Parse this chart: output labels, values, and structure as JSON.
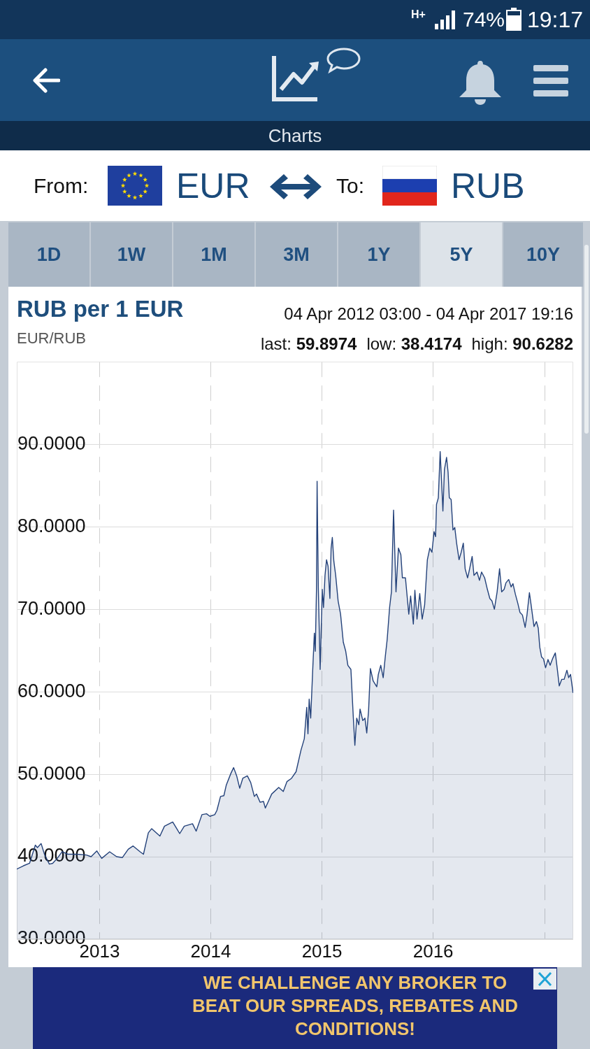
{
  "chart_data": {
    "type": "area",
    "title": "RUB per 1 EUR",
    "subtitle": "EUR/RUB",
    "annotations": [
      "Charts",
      "From:",
      "EUR",
      "To:",
      "RUB",
      "1D",
      "1W",
      "1M",
      "3M",
      "1Y",
      "5Y",
      "10Y",
      "04 Apr 2012 03:00 - 04 Apr 2017 19:16",
      "last: 59.8974",
      "low: 38.4174",
      "high: 90.6282",
      "WE CHALLENGE ANY BROKER TO BEAT OUR SPREADS, REBATES AND CONDITIONS!",
      "H+",
      "74%",
      "19:17"
    ],
    "x": [
      "2012-04-04T03:00",
      "2012-04-26",
      "2012-05-16",
      "2012-05-23",
      "2012-06-04",
      "2012-06-11",
      "2012-06-23",
      "2012-07-04",
      "2012-07-20",
      "2012-07-31",
      "2012-08-15",
      "2012-08-31",
      "2012-09-19",
      "2012-10-19",
      "2012-11-19",
      "2012-12-04",
      "2012-12-23",
      "2013-01-08",
      "2013-02-03",
      "2013-02-26",
      "2013-03-17",
      "2013-04-05",
      "2013-04-21",
      "2013-05-14",
      "2013-05-25",
      "2013-06-10",
      "2013-06-21",
      "2013-07-18",
      "2013-08-02",
      "2013-08-29",
      "2013-09-21",
      "2013-10-06",
      "2013-11-02",
      "2013-11-14",
      "2013-12-03",
      "2013-12-18",
      "2013-12-29",
      "2014-01-14",
      "2014-01-21",
      "2014-02-02",
      "2014-02-13",
      "2014-02-21",
      "2014-03-08",
      "2014-03-17",
      "2014-03-27",
      "2014-04-06",
      "2014-04-16",
      "2014-05-01",
      "2014-05-12",
      "2014-05-24",
      "2014-05-31",
      "2014-06-12",
      "2014-06-23",
      "2014-06-29",
      "2014-07-09",
      "2014-07-20",
      "2014-08-12",
      "2014-08-27",
      "2014-09-08",
      "2014-09-23",
      "2014-10-08",
      "2014-10-24",
      "2014-11-04",
      "2014-11-12",
      "2014-11-16",
      "2014-11-20",
      "2014-11-25",
      "2014-12-01",
      "2014-12-07",
      "2014-12-10",
      "2014-12-14",
      "2014-12-16",
      "2014-12-20",
      "2014-12-26",
      "2015-01-02",
      "2015-01-06",
      "2015-01-11",
      "2015-01-16",
      "2015-01-21",
      "2015-01-27",
      "2015-01-31",
      "2015-02-04",
      "2015-02-09",
      "2015-02-15",
      "2015-02-23",
      "2015-03-03",
      "2015-03-12",
      "2015-03-20",
      "2015-03-27",
      "2015-04-06",
      "2015-04-14",
      "2015-04-19",
      "2015-04-25",
      "2015-05-02",
      "2015-05-06",
      "2015-05-15",
      "2015-05-22",
      "2015-05-28",
      "2015-06-03",
      "2015-06-09",
      "2015-06-18",
      "2015-06-30",
      "2015-07-05",
      "2015-07-13",
      "2015-07-21",
      "2015-07-28",
      "2015-08-03",
      "2015-08-11",
      "2015-08-17",
      "2015-08-24",
      "2015-09-01",
      "2015-09-09",
      "2015-09-17",
      "2015-09-22",
      "2015-10-02",
      "2015-10-13",
      "2015-10-19",
      "2015-10-28",
      "2015-11-02",
      "2015-11-09",
      "2015-11-18",
      "2015-11-26",
      "2015-12-04",
      "2015-12-13",
      "2015-12-21",
      "2015-12-28",
      "2016-01-04",
      "2016-01-09",
      "2016-01-12",
      "2016-01-18",
      "2016-01-24",
      "2016-01-30",
      "2016-02-02",
      "2016-02-07",
      "2016-02-14",
      "2016-02-19",
      "2016-02-23",
      "2016-02-29",
      "2016-03-06",
      "2016-03-12",
      "2016-03-18",
      "2016-03-26",
      "2016-04-02",
      "2016-04-09",
      "2016-04-15",
      "2016-04-23",
      "2016-04-28",
      "2016-05-08",
      "2016-05-14",
      "2016-05-24",
      "2016-06-01",
      "2016-06-08",
      "2016-06-18",
      "2016-06-27",
      "2016-07-05",
      "2016-07-12",
      "2016-07-20",
      "2016-07-29",
      "2016-08-06",
      "2016-08-13",
      "2016-08-21",
      "2016-08-27",
      "2016-09-05",
      "2016-09-13",
      "2016-09-19",
      "2016-09-27",
      "2016-10-05",
      "2016-10-12",
      "2016-10-20",
      "2016-10-29",
      "2016-11-04",
      "2016-11-12",
      "2016-11-18",
      "2016-11-27",
      "2016-12-05",
      "2016-12-11",
      "2016-12-16",
      "2016-12-22",
      "2016-12-28",
      "2017-01-04",
      "2017-01-12",
      "2017-01-19",
      "2017-01-27",
      "2017-02-05",
      "2017-02-12",
      "2017-02-18",
      "2017-02-26",
      "2017-03-06",
      "2017-03-15",
      "2017-03-21",
      "2017-03-27",
      "2017-04-04"
    ],
    "values": [
      38.5,
      38.9,
      39.2,
      40.0,
      41.4,
      41.1,
      41.6,
      40.3,
      39.1,
      39.2,
      39.8,
      40.6,
      40.3,
      40.3,
      40.2,
      40.0,
      40.7,
      39.8,
      40.6,
      40.0,
      39.9,
      40.9,
      41.3,
      40.6,
      40.3,
      42.9,
      43.4,
      42.5,
      43.7,
      44.2,
      42.8,
      43.7,
      44.0,
      43.1,
      45.1,
      45.2,
      44.9,
      45.1,
      45.6,
      47.3,
      47.4,
      48.7,
      50.1,
      50.8,
      49.8,
      48.3,
      49.5,
      49.8,
      49.0,
      47.3,
      47.6,
      46.6,
      46.7,
      45.9,
      46.7,
      47.6,
      48.4,
      47.9,
      49.1,
      49.5,
      50.3,
      52.9,
      54.3,
      58.1,
      54.9,
      59.1,
      56.8,
      62.1,
      67.1,
      64.9,
      72.4,
      85.5,
      72.7,
      62.7,
      72.4,
      70.2,
      74.1,
      76.0,
      75.2,
      71.3,
      77.4,
      78.7,
      75.8,
      74.1,
      71.0,
      69.4,
      66.0,
      64.9,
      63.2,
      62.7,
      56.8,
      53.5,
      56.8,
      56.0,
      57.9,
      56.5,
      56.8,
      55.0,
      57.7,
      62.8,
      61.3,
      60.6,
      62.1,
      63.2,
      61.7,
      64.3,
      66.3,
      70.2,
      72.1,
      82.0,
      72.1,
      77.4,
      76.6,
      73.8,
      73.8,
      69.4,
      71.6,
      68.2,
      72.3,
      68.8,
      71.9,
      68.8,
      70.5,
      76.0,
      77.4,
      76.9,
      79.4,
      78.8,
      82.7,
      83.5,
      89.1,
      84.4,
      81.9,
      86.9,
      88.4,
      86.6,
      83.5,
      83.3,
      79.6,
      79.9,
      78.0,
      76.0,
      76.9,
      78.0,
      74.9,
      73.8,
      74.6,
      76.4,
      74.1,
      74.5,
      73.5,
      74.5,
      73.8,
      72.4,
      71.3,
      71.0,
      70.0,
      72.1,
      74.9,
      72.1,
      72.4,
      73.2,
      73.6,
      72.7,
      73.1,
      71.8,
      70.7,
      69.6,
      69.3,
      67.8,
      69.3,
      72.0,
      70.4,
      67.9,
      68.5,
      67.7,
      65.4,
      64.2,
      64.0,
      62.9,
      63.9,
      63.2,
      64.0,
      64.7,
      62.6,
      60.7,
      61.5,
      61.5,
      62.6,
      61.7,
      62.1,
      59.9
    ],
    "color": "#24427a",
    "xlim": [
      "2012-04-04T03:00",
      "2017-04-04T19:16"
    ],
    "xticks": [
      "2013",
      "2014",
      "2015",
      "2016",
      {
        "value": "2017",
        "label": null
      }
    ],
    "ylim": [
      30,
      100
    ],
    "yticks": [
      {
        "value": 30,
        "label": "30.0000"
      },
      {
        "value": 40,
        "label": "40.0000"
      },
      {
        "value": 50,
        "label": "50.0000"
      },
      {
        "value": 60,
        "label": "60.0000"
      },
      {
        "value": 70,
        "label": "70.0000"
      },
      {
        "value": 80,
        "label": "80.0000"
      },
      {
        "value": 90,
        "label": "90.0000"
      }
    ],
    "grid": true,
    "marker": "none"
  }
}
